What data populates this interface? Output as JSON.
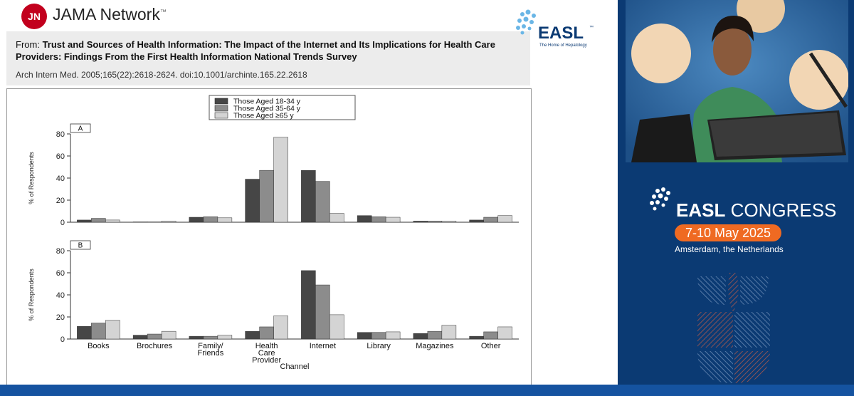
{
  "header": {
    "publisher_initials": "JN",
    "publisher_name": "JAMA Network",
    "publisher_tm": "™"
  },
  "reference": {
    "from_label": "From:",
    "title": "Trust and Sources of Health Information: The Impact of the Internet and Its Implications for Health Care Providers: Findings From the First Health Information National Trends Survey",
    "citation": "Arch Intern Med. 2005;165(22):2618-2624. doi:10.1001/archinte.165.22.2618"
  },
  "easl_logo": {
    "name": "EASL",
    "tm": "™",
    "tagline": "The Home of Hepatology"
  },
  "congress": {
    "name_bold": "EASL",
    "name_rest": "CONGRESS",
    "dates": "7-10 May 2025",
    "location": "Amsterdam, the Netherlands"
  },
  "colors": {
    "series_1": "#464646",
    "series_2": "#8c8c8c",
    "series_3": "#d4d4d4",
    "jama_red": "#c2001d",
    "easl_blue": "#0b3a73",
    "congress_orange": "#ef6a22"
  },
  "chart_data": {
    "type": "bar",
    "categories": [
      "Books",
      "Brochures",
      "Family/\nFriends",
      "Health\nCare\nProvider",
      "Internet",
      "Library",
      "Magazines",
      "Other"
    ],
    "xlabel": "Channel",
    "legend": [
      "Those Aged 18-34 y",
      "Those Aged 35-64 y",
      "Those Aged ≥65 y"
    ],
    "legend_position": "top-center",
    "panels": [
      {
        "label": "A",
        "ylabel": "% of Respondents",
        "ylim": [
          0,
          80
        ],
        "yticks": [
          0,
          20,
          40,
          60,
          80
        ],
        "series": [
          {
            "values": [
              2,
              0.3,
              4.5,
              39,
              47,
              6,
              1,
              2
            ]
          },
          {
            "values": [
              3.5,
              0.3,
              5,
              47,
              37,
              5,
              1,
              4.5
            ]
          },
          {
            "values": [
              2,
              1,
              4,
              77,
              8,
              4.5,
              1,
              6
            ]
          }
        ]
      },
      {
        "label": "B",
        "ylabel": "% of Respondents",
        "ylim": [
          0,
          80
        ],
        "yticks": [
          0,
          20,
          40,
          60,
          80
        ],
        "series": [
          {
            "values": [
              11.5,
              3.5,
              2.5,
              7,
              62,
              6,
              5,
              2.5
            ]
          },
          {
            "values": [
              14.5,
              4.5,
              2.5,
              11,
              49,
              6,
              7,
              6.5
            ]
          },
          {
            "values": [
              17,
              7,
              3.5,
              21,
              22,
              6.5,
              12.5,
              11
            ]
          }
        ]
      }
    ]
  }
}
